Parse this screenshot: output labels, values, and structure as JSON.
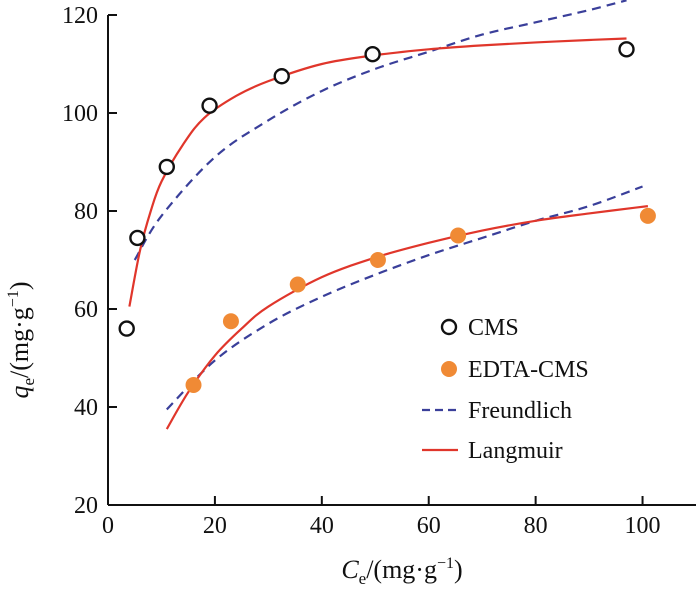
{
  "chart_data": {
    "type": "scatter",
    "xlabel": {
      "main": "C",
      "sub": "e",
      "unit_prefix": "/(mg·g",
      "sup": "−1",
      "unit_suffix": ")"
    },
    "ylabel": {
      "main": "q",
      "sub": "e",
      "unit_prefix": "/(mg·g",
      "sup": "−1",
      "unit_suffix": ")"
    },
    "xlim": [
      0,
      110
    ],
    "ylim": [
      20,
      120
    ],
    "xticks": [
      0,
      20,
      40,
      60,
      80,
      100
    ],
    "yticks": [
      20,
      40,
      60,
      80,
      100,
      120
    ],
    "grid": false,
    "legend_position": "bottom-right",
    "colors": {
      "cms_edge": "#111111",
      "edta": "#f08a35",
      "freundlich": "#3a3f9a",
      "langmuir": "#e0362b"
    },
    "series": [
      {
        "name": "CMS",
        "kind": "scatter-open",
        "x": [
          3.5,
          5.5,
          11,
          19,
          32.5,
          49.5,
          97
        ],
        "y": [
          56,
          74.5,
          89,
          101.5,
          107.5,
          112,
          113
        ]
      },
      {
        "name": "EDTA-CMS",
        "kind": "scatter-filled",
        "x": [
          16,
          23,
          35.5,
          50.5,
          65.5,
          101
        ],
        "y": [
          44.5,
          57.5,
          65,
          70,
          75,
          79
        ]
      },
      {
        "name": "Freundlich",
        "kind": "dashed-line",
        "curves": [
          {
            "x": [
              5,
              10,
              20,
              30,
              40,
              50,
              60,
              70,
              80,
              90,
              97
            ],
            "y": [
              70,
              79,
              91,
              98.5,
              104.5,
              109,
              112.5,
              116,
              118.5,
              121,
              123
            ]
          },
          {
            "x": [
              11,
              20,
              30,
              40,
              50,
              60,
              70,
              80,
              90,
              100
            ],
            "y": [
              39.5,
              49.5,
              57,
              62.5,
              67,
              71,
              74.5,
              78,
              81,
              85
            ]
          }
        ]
      },
      {
        "name": "Langmuir",
        "kind": "solid-line",
        "curves": [
          {
            "x": [
              4,
              6,
              8,
              10,
              14,
              18,
              24,
              30,
              40,
              50,
              60,
              70,
              80,
              90,
              97
            ],
            "y": [
              60.5,
              72,
              80,
              86,
              93.5,
              99,
              103.5,
              106.5,
              110,
              111.8,
              113,
              113.8,
              114.4,
              114.9,
              115.2
            ]
          },
          {
            "x": [
              11,
              15,
              20,
              25,
              30,
              40,
              50,
              60,
              70,
              80,
              90,
              101
            ],
            "y": [
              35.5,
              43,
              50.5,
              56,
              60.5,
              66.5,
              70.5,
              73.5,
              76,
              78,
              79.5,
              81
            ]
          }
        ]
      }
    ]
  }
}
